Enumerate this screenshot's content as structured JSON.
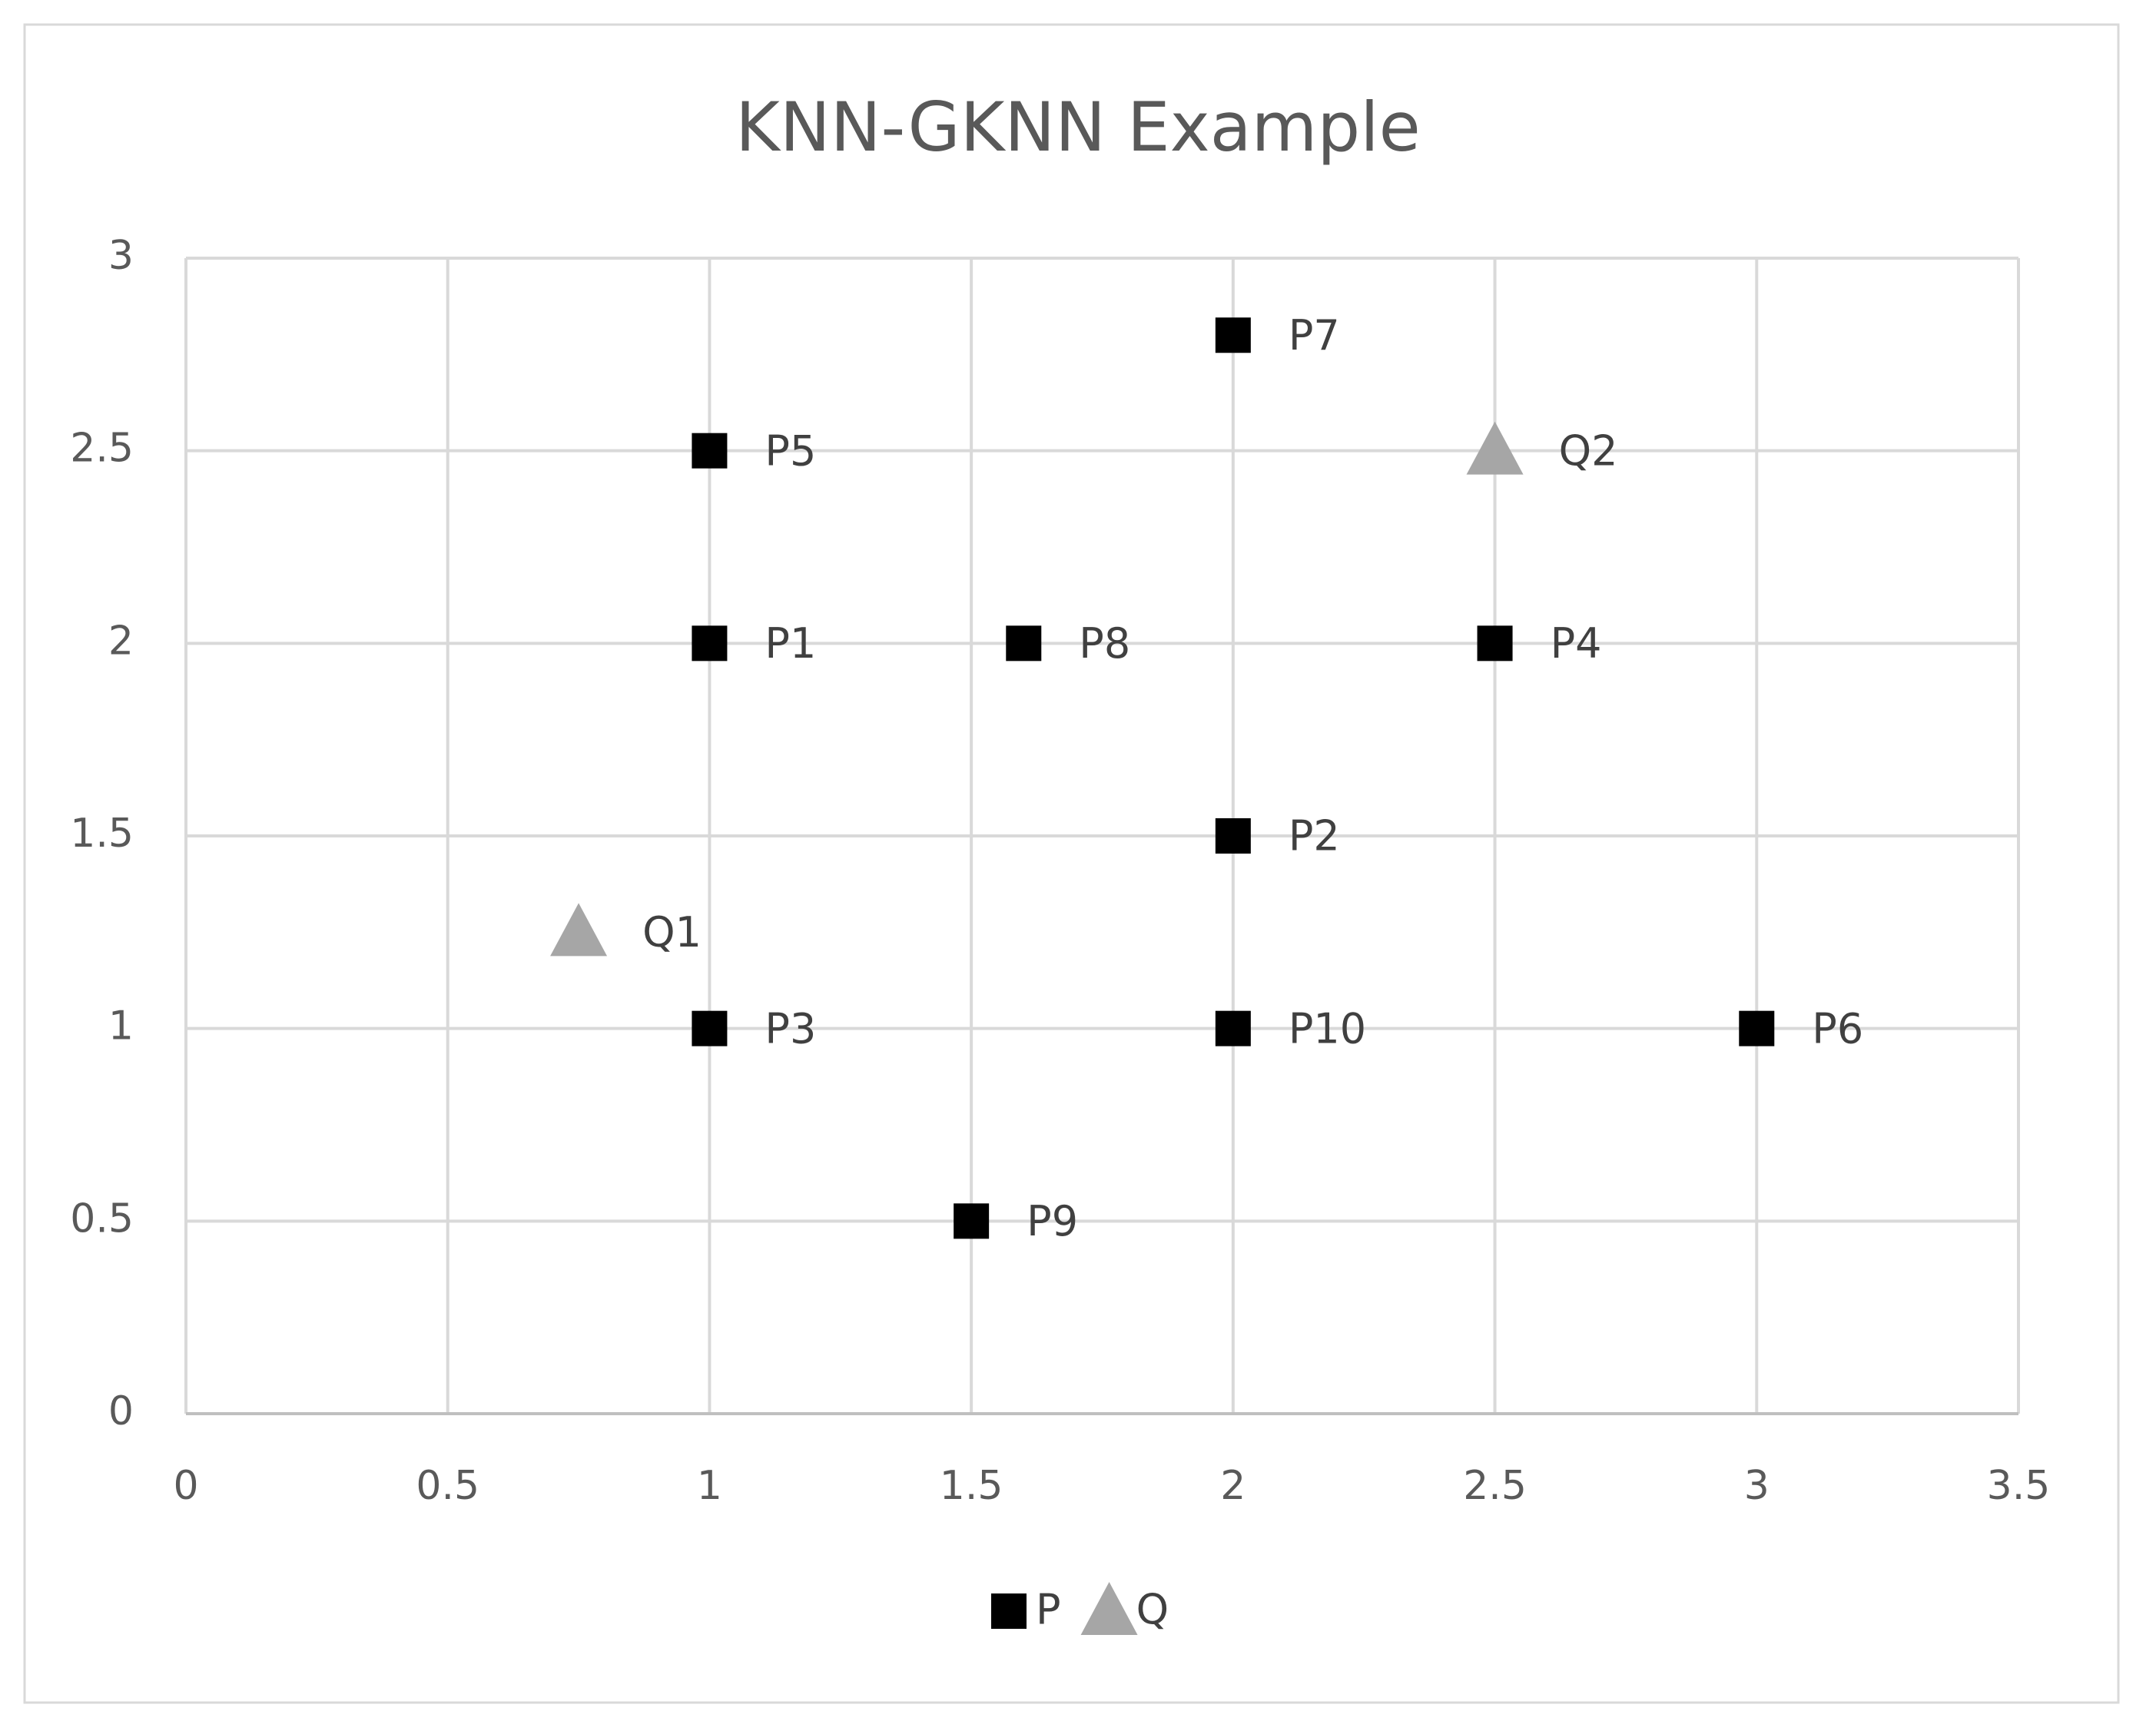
{
  "chart_data": {
    "type": "scatter",
    "title": "KNN-GKNN Example",
    "series": [
      {
        "name": "P",
        "color": "#000000",
        "marker": "square",
        "x": [
          1,
          2,
          1,
          2.5,
          1,
          3,
          2,
          1.6,
          1.5,
          2
        ],
        "values": [
          2,
          1.5,
          1,
          2,
          2.5,
          1,
          2.8,
          2,
          0.5,
          1
        ],
        "point_labels": [
          "P1",
          "P2",
          "P3",
          "P4",
          "P5",
          "P6",
          "P7",
          "P8",
          "P9",
          "P10"
        ]
      },
      {
        "name": "Q",
        "color": "#a6a6a6",
        "marker": "triangle",
        "x": [
          0.75,
          2.5
        ],
        "values": [
          1.25,
          2.5
        ],
        "point_labels": [
          "Q1",
          "Q2"
        ]
      }
    ],
    "xlim": [
      0,
      3.5
    ],
    "xticks": [
      0,
      0.5,
      1,
      1.5,
      2,
      2.5,
      3,
      3.5
    ],
    "ylim": [
      0,
      3
    ],
    "yticks": [
      0,
      0.5,
      1,
      1.5,
      2,
      2.5,
      3
    ],
    "grid": true,
    "legend": "bottom"
  }
}
